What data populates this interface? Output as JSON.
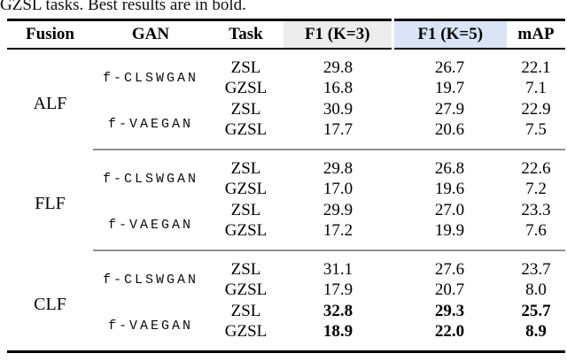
{
  "caption": "GZSL tasks. Best results are in bold.",
  "table": {
    "header": {
      "fusion": "Fusion",
      "gan": "GAN",
      "task": "Task",
      "f1k3": "F1 (K=3)",
      "f1k5": "F1 (K=5)",
      "map": "mAP"
    },
    "colors": {
      "f1k3_header_bg": "#ececec",
      "f1k5_header_bg": "#d9e5f6",
      "rule_black": "#000000",
      "rule_gray": "#8f8f8f"
    },
    "blocks": [
      {
        "fusion": "ALF",
        "groups": [
          {
            "gan": "f-CLSWGAN",
            "rows": [
              {
                "task": "ZSL",
                "f1k3": "29.8",
                "f1k5": "26.7",
                "map": "22.1",
                "bold": false
              },
              {
                "task": "GZSL",
                "f1k3": "16.8",
                "f1k5": "19.7",
                "map": "7.1",
                "bold": false
              }
            ]
          },
          {
            "gan": "f-VAEGAN",
            "rows": [
              {
                "task": "ZSL",
                "f1k3": "30.9",
                "f1k5": "27.9",
                "map": "22.9",
                "bold": false
              },
              {
                "task": "GZSL",
                "f1k3": "17.7",
                "f1k5": "20.6",
                "map": "7.5",
                "bold": false
              }
            ]
          }
        ]
      },
      {
        "fusion": "FLF",
        "groups": [
          {
            "gan": "f-CLSWGAN",
            "rows": [
              {
                "task": "ZSL",
                "f1k3": "29.8",
                "f1k5": "26.8",
                "map": "22.6",
                "bold": false
              },
              {
                "task": "GZSL",
                "f1k3": "17.0",
                "f1k5": "19.6",
                "map": "7.2",
                "bold": false
              }
            ]
          },
          {
            "gan": "f-VAEGAN",
            "rows": [
              {
                "task": "ZSL",
                "f1k3": "29.9",
                "f1k5": "27.0",
                "map": "23.3",
                "bold": false
              },
              {
                "task": "GZSL",
                "f1k3": "17.2",
                "f1k5": "19.9",
                "map": "7.6",
                "bold": false
              }
            ]
          }
        ]
      },
      {
        "fusion": "CLF",
        "groups": [
          {
            "gan": "f-CLSWGAN",
            "rows": [
              {
                "task": "ZSL",
                "f1k3": "31.1",
                "f1k5": "27.6",
                "map": "23.7",
                "bold": false
              },
              {
                "task": "GZSL",
                "f1k3": "17.9",
                "f1k5": "20.7",
                "map": "8.0",
                "bold": false
              }
            ]
          },
          {
            "gan": "f-VAEGAN",
            "rows": [
              {
                "task": "ZSL",
                "f1k3": "32.8",
                "f1k5": "29.3",
                "map": "25.7",
                "bold": true
              },
              {
                "task": "GZSL",
                "f1k3": "18.9",
                "f1k5": "22.0",
                "map": "8.9",
                "bold": true
              }
            ]
          }
        ]
      }
    ]
  }
}
